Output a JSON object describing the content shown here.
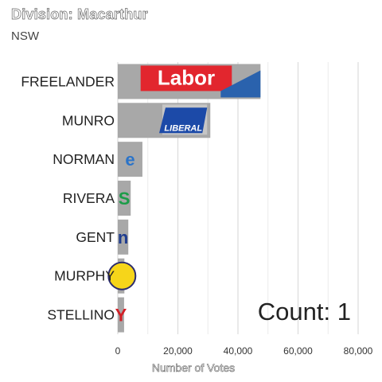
{
  "header": {
    "title": "Division: Macarthur",
    "subtitle": "NSW"
  },
  "counter_text": "Count:  1",
  "chart_data": {
    "type": "bar",
    "orientation": "horizontal",
    "categories": [
      "FREELANDER",
      "MUNRO",
      "NORMAN",
      "RIVERA",
      "GENT",
      "MURPHY",
      "STELLINO"
    ],
    "values": [
      47500,
      30800,
      8200,
      4300,
      3500,
      2200,
      2100
    ],
    "xlabel": "Number of Votes",
    "ylabel": "",
    "xlim": [
      0,
      80000
    ],
    "xticks": [
      0,
      20000,
      40000,
      60000,
      80000
    ],
    "xtick_labels": [
      "0",
      "20,000",
      "40,000",
      "60,000",
      "80,000"
    ],
    "grid": true,
    "party_logos": [
      {
        "text": "Labor",
        "bg": "#e2262e",
        "alt": "#2a62ad"
      },
      {
        "text": "LIBERAL",
        "bg": "#ffffff",
        "alt": "#1c4aa8"
      },
      {
        "text": "e",
        "bg": "#ffffff",
        "alt": "#2b74c9"
      },
      {
        "text": "S",
        "bg": "#ffffff",
        "alt": "#1b9c48"
      },
      {
        "text": "n",
        "bg": "#ffffff",
        "alt": "#1e3c8f"
      },
      {
        "text": "",
        "bg": "#f6d51a",
        "alt": "#2c2c6e"
      },
      {
        "text": "Y",
        "bg": "#ffffff",
        "alt": "#d21f26"
      }
    ],
    "colors": {
      "bar": "#a8a8a8",
      "grid": "#dcdcdc"
    }
  }
}
